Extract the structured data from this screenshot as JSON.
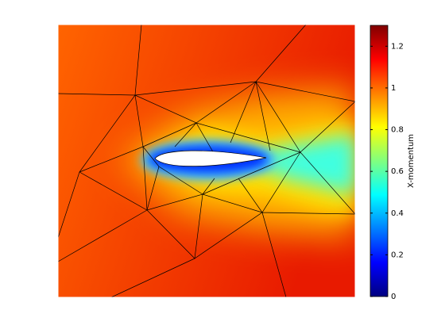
{
  "chart_data": {
    "type": "field",
    "colorbar_label": "X-momentum",
    "ylim": [
      0,
      1.3
    ],
    "yticks": [
      0,
      0.2,
      0.4,
      0.6,
      0.8,
      1,
      1.2
    ],
    "colormap": [
      "#000080",
      "#0000ff",
      "#0080ff",
      "#00ffff",
      "#80ff80",
      "#ffff00",
      "#ff8000",
      "#ff0000",
      "#800000"
    ]
  }
}
